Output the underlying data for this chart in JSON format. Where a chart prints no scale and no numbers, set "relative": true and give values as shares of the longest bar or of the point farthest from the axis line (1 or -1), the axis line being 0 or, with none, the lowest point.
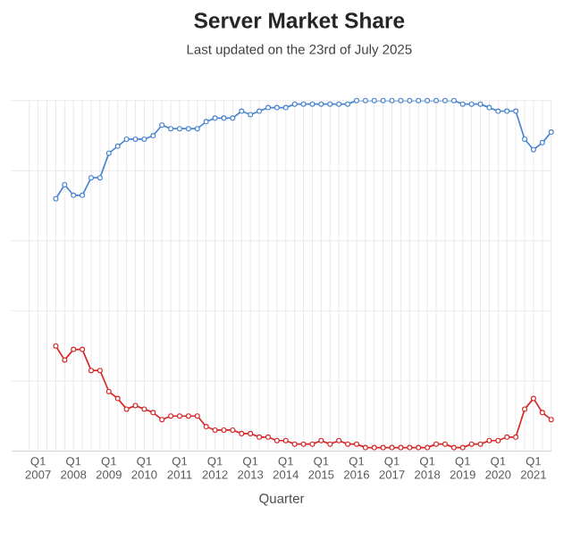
{
  "chart_data": {
    "type": "line",
    "title": "Server Market Share",
    "subtitle": "Last updated on the 23rd of July 2025",
    "xlabel": "Quarter",
    "relative": true,
    "grid": true,
    "marker": "circle",
    "line_style": "solid",
    "categories": [
      null,
      "Q1 2007",
      null,
      null,
      null,
      "Q1 2008",
      null,
      null,
      null,
      "Q1 2009",
      null,
      null,
      null,
      "Q1 2010",
      null,
      null,
      null,
      "Q1 2011",
      null,
      null,
      null,
      "Q1 2012",
      null,
      null,
      null,
      "Q1 2013",
      null,
      null,
      null,
      "Q1 2014",
      null,
      null,
      null,
      "Q1 2015",
      null,
      null,
      null,
      "Q1 2016",
      null,
      null,
      null,
      "Q1 2017",
      null,
      null,
      null,
      "Q1 2018",
      null,
      null,
      null,
      "Q1 2019",
      null,
      null,
      null,
      "Q1 2020",
      null,
      null,
      null,
      "Q1 2021",
      null,
      null
    ],
    "series": [
      {
        "color": "#4a86d0",
        "values": [
          null,
          null,
          null,
          0.72,
          0.76,
          0.73,
          0.73,
          0.78,
          0.78,
          0.85,
          0.87,
          0.89,
          0.89,
          0.89,
          0.9,
          0.93,
          0.92,
          0.92,
          0.92,
          0.92,
          0.94,
          0.95,
          0.95,
          0.95,
          0.97,
          0.96,
          0.97,
          0.98,
          0.98,
          0.98,
          0.99,
          0.99,
          0.99,
          0.99,
          0.99,
          0.99,
          0.99,
          1,
          1,
          1,
          1,
          1,
          1,
          1,
          1,
          1,
          1,
          1,
          1,
          0.99,
          0.99,
          0.99,
          0.98,
          0.97,
          0.97,
          0.97,
          0.89,
          0.86,
          0.88,
          0.91
        ]
      },
      {
        "color": "#d42a2a",
        "values": [
          null,
          null,
          null,
          0.3,
          0.26,
          0.29,
          0.29,
          0.23,
          0.23,
          0.17,
          0.15,
          0.12,
          0.13,
          0.12,
          0.11,
          0.09,
          0.1,
          0.1,
          0.1,
          0.1,
          0.07,
          0.06,
          0.06,
          0.06,
          0.05,
          0.05,
          0.04,
          0.04,
          0.03,
          0.03,
          0.02,
          0.02,
          0.02,
          0.03,
          0.02,
          0.03,
          0.02,
          0.02,
          0.01,
          0.01,
          0.01,
          0.01,
          0.01,
          0.01,
          0.01,
          0.01,
          0.02,
          0.02,
          0.01,
          0.01,
          0.02,
          0.02,
          0.03,
          0.03,
          0.04,
          0.04,
          0.12,
          0.15,
          0.11,
          0.09
        ]
      }
    ]
  }
}
